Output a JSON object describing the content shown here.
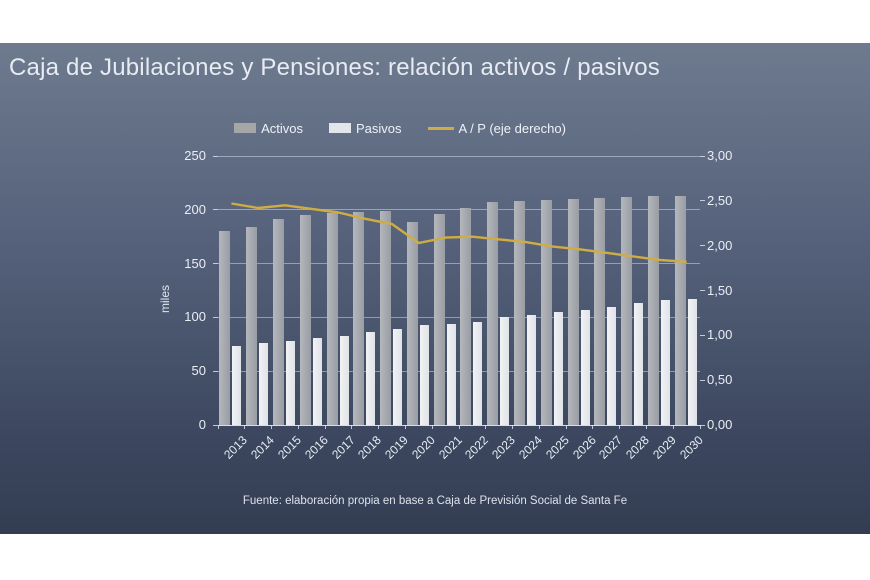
{
  "slide": {
    "title": "Caja de Jubilaciones y Pensiones: relación activos / pasivos",
    "source": "Fuente: elaboración propia en base a Caja de Previsión Social de Santa Fe"
  },
  "chart_data": {
    "type": "bar",
    "title": "Caja de Jubilaciones y Pensiones: relación activos / pasivos",
    "categories": [
      "2013",
      "2014",
      "2015",
      "2016",
      "2017",
      "2018",
      "2019",
      "2020",
      "2021",
      "2022",
      "2023",
      "2024",
      "2025",
      "2026",
      "2027",
      "2028",
      "2029",
      "2030"
    ],
    "series": [
      {
        "name": "Activos",
        "type": "bar",
        "axis": "left",
        "color": "#a6a6a6",
        "values": [
          180,
          184,
          191,
          195,
          197,
          198,
          199,
          189,
          196,
          202,
          207,
          208,
          209,
          210,
          211,
          212,
          213,
          213
        ]
      },
      {
        "name": "Pasivos",
        "type": "bar",
        "axis": "left",
        "color": "#e2e6eb",
        "values": [
          73,
          76,
          78,
          81,
          83,
          86,
          89,
          93,
          94,
          96,
          100,
          102,
          105,
          107,
          110,
          113,
          116,
          117
        ]
      },
      {
        "name": "A / P (eje derecho)",
        "type": "line",
        "axis": "right",
        "color": "#d0ad42",
        "values": [
          2.47,
          2.42,
          2.45,
          2.41,
          2.37,
          2.3,
          2.24,
          2.03,
          2.09,
          2.1,
          2.07,
          2.04,
          1.99,
          1.96,
          1.92,
          1.88,
          1.84,
          1.82
        ]
      }
    ],
    "left_axis": {
      "title": "miles",
      "min": 0,
      "max": 250,
      "step": 50,
      "ticks": [
        "250",
        "200",
        "150",
        "100",
        "50",
        "0"
      ]
    },
    "right_axis": {
      "min": 0,
      "max": 3,
      "step": 0.5,
      "ticks": [
        "3,00",
        "2,50",
        "2,00",
        "1,50",
        "1,00",
        "0,50",
        "0,00"
      ]
    },
    "legend_position": "top-center",
    "grid": true
  }
}
